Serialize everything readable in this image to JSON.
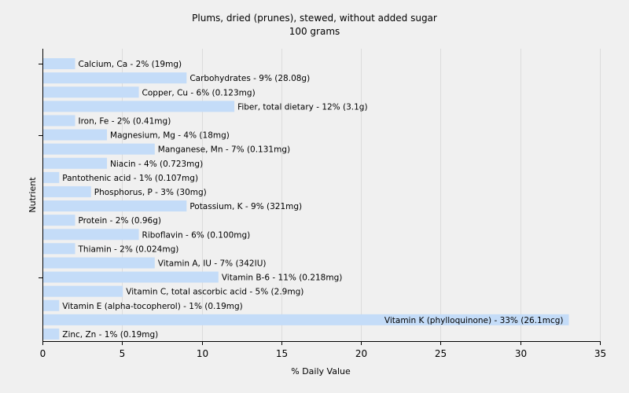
{
  "chart_data": {
    "type": "bar",
    "orientation": "horizontal",
    "title": "Plums, dried (prunes), stewed, without added sugar",
    "subtitle": "100 grams",
    "xlabel": "% Daily Value",
    "ylabel": "Nutrient",
    "xlim": [
      0,
      35
    ],
    "xticks": [
      0,
      5,
      10,
      15,
      20,
      25,
      30,
      35
    ],
    "grid": "vertical",
    "bar_color": "#c4dcf8",
    "categories": [
      "Calcium, Ca",
      "Carbohydrates",
      "Copper, Cu",
      "Fiber, total dietary",
      "Iron, Fe",
      "Magnesium, Mg",
      "Manganese, Mn",
      "Niacin",
      "Pantothenic acid",
      "Phosphorus, P",
      "Potassium, K",
      "Protein",
      "Riboflavin",
      "Thiamin",
      "Vitamin A, IU",
      "Vitamin B-6",
      "Vitamin C, total ascorbic acid",
      "Vitamin E (alpha-tocopherol)",
      "Vitamin K (phylloquinone)",
      "Zinc, Zn"
    ],
    "values": [
      2,
      9,
      6,
      12,
      2,
      4,
      7,
      4,
      1,
      3,
      9,
      2,
      6,
      2,
      7,
      11,
      5,
      1,
      33,
      1
    ],
    "labels": [
      "Calcium, Ca - 2% (19mg)",
      "Carbohydrates - 9% (28.08g)",
      "Copper, Cu - 6% (0.123mg)",
      "Fiber, total dietary - 12% (3.1g)",
      "Iron, Fe - 2% (0.41mg)",
      "Magnesium, Mg - 4% (18mg)",
      "Manganese, Mn - 7% (0.131mg)",
      "Niacin - 4% (0.723mg)",
      "Pantothenic acid - 1% (0.107mg)",
      "Phosphorus, P - 3% (30mg)",
      "Potassium, K - 9% (321mg)",
      "Protein - 2% (0.96g)",
      "Riboflavin - 6% (0.100mg)",
      "Thiamin - 2% (0.024mg)",
      "Vitamin A, IU - 7% (342IU)",
      "Vitamin B-6 - 11% (0.218mg)",
      "Vitamin C, total ascorbic acid - 5% (2.9mg)",
      "Vitamin E (alpha-tocopherol) - 1% (0.19mg)",
      "Vitamin K (phylloquinone) - 33% (26.1mcg)",
      "Zinc, Zn - 1% (0.19mg)"
    ]
  }
}
